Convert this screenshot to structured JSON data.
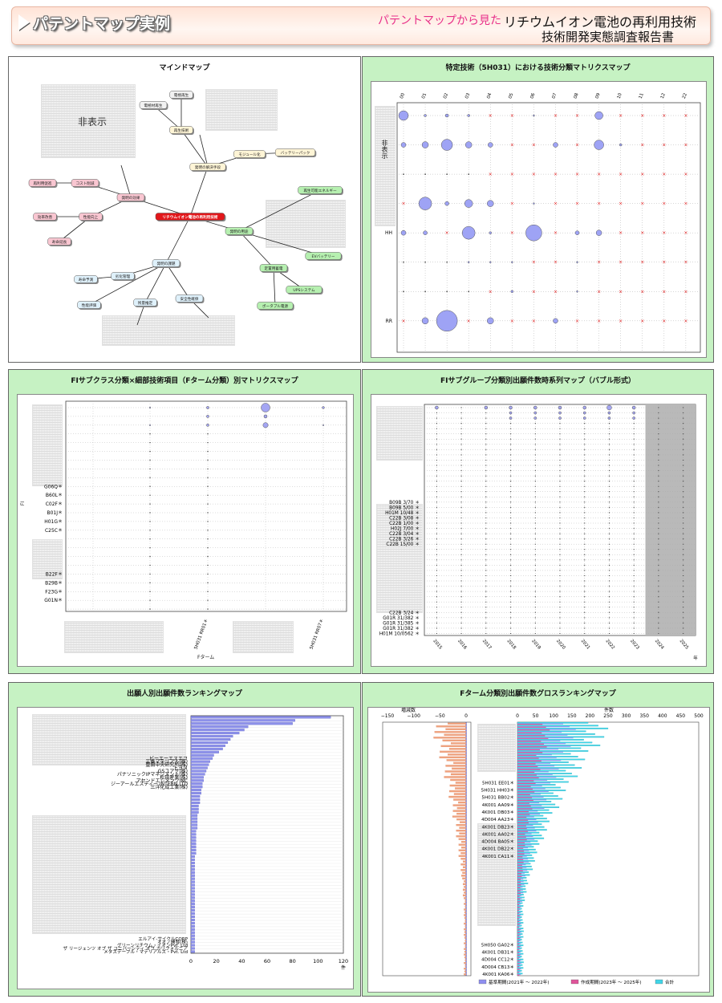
{
  "header": {
    "badge_title": "パテントマップ実例",
    "subtitle_prefix": "パテントマップから見た",
    "title_line1": "リチウムイオン電池の再利用技術",
    "title_line2": "技術開発実態調査報告書"
  },
  "panel1": {
    "title": "マインドマップ",
    "hidden_label": "非表示",
    "center_node": "リチウムイオン電池の再利用技術",
    "nodes": [
      {
        "id": "n1",
        "label": "電極再生"
      },
      {
        "id": "n2",
        "label": "電極材再生"
      },
      {
        "id": "n3",
        "label": "再生技術"
      },
      {
        "id": "n4",
        "label": "発明の解決手段"
      },
      {
        "id": "n5",
        "label": "モジュール化"
      },
      {
        "id": "n6",
        "label": "バッテリーパック"
      },
      {
        "id": "n7",
        "label": "発明の効果"
      },
      {
        "id": "n8",
        "label": "再利用促進"
      },
      {
        "id": "n9",
        "label": "コスト削減"
      },
      {
        "id": "n10",
        "label": "効率改善"
      },
      {
        "id": "n11",
        "label": "性能向上"
      },
      {
        "id": "n12",
        "label": "寿命延長"
      },
      {
        "id": "n13",
        "label": "発明の用途"
      },
      {
        "id": "n14",
        "label": "再生可能エネルギー"
      },
      {
        "id": "n15",
        "label": "EVバッテリー"
      },
      {
        "id": "n16",
        "label": "定置用蓄電"
      },
      {
        "id": "n17",
        "label": "UPSシステム"
      },
      {
        "id": "n18",
        "label": "ポータブル電源"
      },
      {
        "id": "n19",
        "label": "発明の課題"
      },
      {
        "id": "n20",
        "label": "劣化管理"
      },
      {
        "id": "n21",
        "label": "寿命予測"
      },
      {
        "id": "n22",
        "label": "性能評価"
      },
      {
        "id": "n23",
        "label": "残量推定"
      },
      {
        "id": "n24",
        "label": "安全性確保"
      }
    ]
  },
  "panel2": {
    "title": "特定技術（5H031）における技術分類マトリクスマップ",
    "col_labels": [
      "00",
      "01",
      "02",
      "03",
      "04",
      "05",
      "06",
      "07",
      "08",
      "09",
      "10",
      "11",
      "12",
      "22"
    ],
    "row_labels": [
      "",
      "",
      "",
      "",
      "HH",
      "",
      "",
      "RR"
    ],
    "hidden_label": "非表示"
  },
  "panel3": {
    "title": "FIサブクラス分類×細部技術項目（Fターム分類）別マトリクスマップ",
    "row_labels": [
      "G06Q＊",
      "B60L＊",
      "C02F＊",
      "B01J＊",
      "H01G＊",
      "C25C＊",
      "B22F＊",
      "B29B＊",
      "F23G＊",
      "G01N＊"
    ],
    "axis_label_y": "FI",
    "axis_label_x": "Fターム",
    "x_tick_labels": [
      "5H031 RR01＊",
      "5H031 RR07＊"
    ]
  },
  "panel4": {
    "title": "FIサブグループ分類別出願件数時系列マップ（バブル形式）",
    "row_labels_top": [
      "B09B 3/70",
      "B09B 5/00",
      "H01M 10/48",
      "C22B 3/08",
      "C22B 1/00",
      "H02J 7/00",
      "C22B 3/04",
      "C22B 3/26",
      "C22B 15/00"
    ],
    "row_labels_bottom": [
      "C22B 3/24",
      "G01R 31/382",
      "G01R 31/385",
      "G01R 31/382",
      "H01M 10/0562"
    ],
    "years": [
      "2015",
      "2016",
      "2017",
      "2018",
      "2019",
      "2020",
      "2021",
      "2022",
      "2023",
      "2024",
      "2025"
    ],
    "year_unit": "年"
  },
  "panel5": {
    "title": "出願人別出願件数ランキングマップ",
    "applicants_visible": [
      "ビーエーエスエフ",
      "三菱マテリアル(株)",
      "豊田中央研究所(株)",
      "トヨタ",
      "GSユアサ(株)",
      "パナソニックIPマネジメント(株)",
      "松田産業(株)",
      "アセンドエレメンツINC",
      "ジーアールエスティー INTERN LTD",
      "三洋化成工業(株)"
    ],
    "applicants_bottom": [
      "エルアイ-サイクルCORP",
      "オオノ開發(株)",
      "グリーンリチウム・イオンPvt. Ltd",
      "ザ リージェンツ オブ ザ ユニバーシティ オブ カリフォルニア",
      "メタステーブル・マテリアルズ・Pvt. Ltd"
    ],
    "x_ticks": [
      "0",
      "20",
      "40",
      "60",
      "80",
      "100",
      "120"
    ],
    "x_unit": "件",
    "values": [
      110,
      82,
      80,
      45,
      42,
      38,
      33,
      31,
      29,
      27,
      25,
      22,
      18,
      17,
      15,
      14,
      13,
      12,
      11,
      10,
      10,
      9,
      9,
      8,
      8,
      7,
      7,
      7,
      6,
      6,
      6,
      5,
      5,
      5,
      5,
      5,
      4,
      4,
      4,
      4,
      4,
      4,
      4,
      4,
      3,
      3,
      3,
      3,
      3,
      3,
      3,
      3,
      3,
      3,
      3,
      3,
      3,
      3,
      3,
      3,
      3,
      3,
      3,
      3,
      3,
      3,
      3,
      3,
      3,
      3,
      3,
      3,
      3,
      3,
      3
    ]
  },
  "panel6": {
    "title": "Fターム分類別出願件数グロスランキングマップ",
    "left_axis_label": "増減数",
    "left_ticks": [
      "−150",
      "−100",
      "−50",
      "0"
    ],
    "right_axis_label": "件数",
    "right_ticks": [
      "0",
      "50",
      "100",
      "150",
      "200",
      "250",
      "300",
      "350",
      "400",
      "450",
      "500"
    ],
    "row_labels_mid": [
      "5H031 EE01＊",
      "5H031 HH03＊",
      "5H031 BB02＊",
      "4K001 AA09＊",
      "4K001 DB03＊",
      "4D004 AA23＊",
      "4K001 DB23＊",
      "4K001 AA02＊",
      "4D004 BA05＊",
      "4K001 DB22＊",
      "4K001 CA11＊"
    ],
    "row_labels_bottom": [
      "5H050 GA02＊",
      "4K001 DB31＊",
      "4D004 CC12＊",
      "4D004 CB13＊",
      "4K001 KA06＊"
    ],
    "legend": [
      "基準期間(2021年 〜 2022年)",
      "作成期間(2023年 〜 2025年)",
      "合計"
    ],
    "colors": {
      "base": "#8f8ff0",
      "made": "#e0559a",
      "total": "#40d6e8",
      "delta": "#f0a37f"
    }
  }
}
